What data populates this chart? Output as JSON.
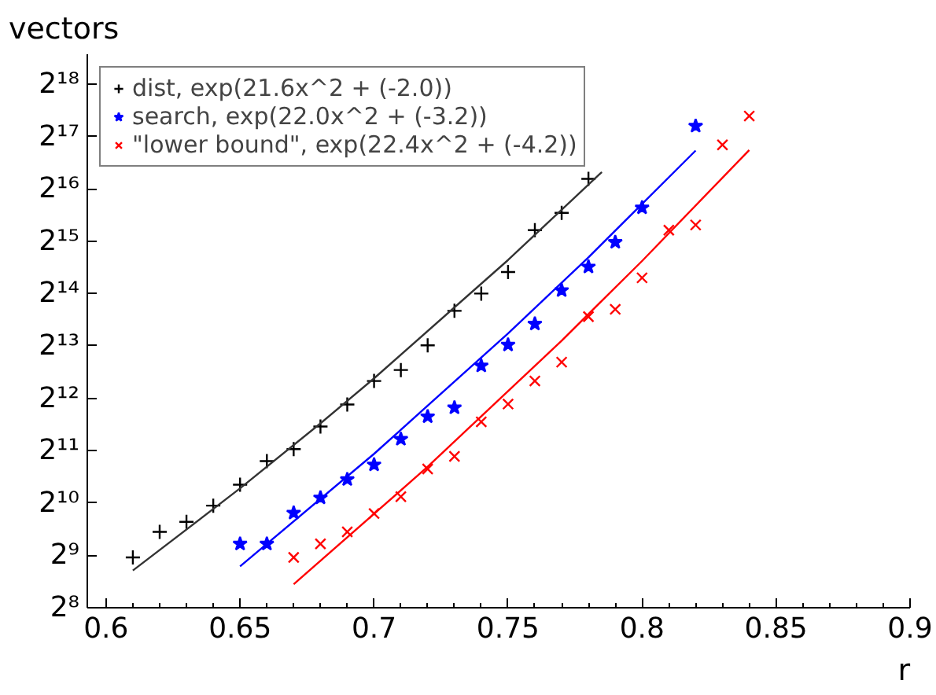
{
  "chart_data": {
    "type": "scatter",
    "xlabel": "r",
    "ylabel": "vectors",
    "log": "y",
    "grid": false,
    "legend": "top left",
    "xlim": [
      0.593,
      0.9
    ],
    "ylim": [
      256,
      389000
    ],
    "xticks": [
      0.6,
      0.65,
      0.7,
      0.75,
      0.8,
      0.85,
      0.9
    ],
    "yticks": [
      {
        "value": 256,
        "label": "2⁸"
      },
      {
        "value": 512,
        "label": "2⁹"
      },
      {
        "value": 1024,
        "label": "2¹⁰"
      },
      {
        "value": 2048,
        "label": "2¹¹"
      },
      {
        "value": 4096,
        "label": "2¹²"
      },
      {
        "value": 8192,
        "label": "2¹³"
      },
      {
        "value": 16384,
        "label": "2¹⁴"
      },
      {
        "value": 32768,
        "label": "2¹⁵"
      },
      {
        "value": 65536,
        "label": "2¹⁶"
      },
      {
        "value": 131072,
        "label": "2¹⁷"
      },
      {
        "value": 262144,
        "label": "2¹⁸"
      }
    ],
    "series": [
      {
        "name": "dist, exp(21.6x^2 + (-2.0))",
        "color": "#000000",
        "marker": "cross",
        "x": [
          0.61,
          0.62,
          0.63,
          0.64,
          0.65,
          0.66,
          0.67,
          0.68,
          0.69,
          0.7,
          0.71,
          0.72,
          0.73,
          0.74,
          0.75,
          0.76,
          0.77,
          0.78
        ],
        "values": [
          498,
          699,
          798,
          989,
          1305,
          1783,
          2091,
          2817,
          3769,
          5148,
          5954,
          8250,
          13030,
          16380,
          21770,
          37890,
          47630,
          74800
        ]
      },
      {
        "name": "search, exp(22.0x^2 + (-3.2))",
        "color": "#0000ff",
        "marker": "star",
        "x": [
          0.65,
          0.66,
          0.67,
          0.68,
          0.69,
          0.7,
          0.71,
          0.72,
          0.73,
          0.74,
          0.75,
          0.76,
          0.77,
          0.78,
          0.79,
          0.8,
          0.82
        ],
        "values": [
          596,
          596,
          898,
          1097,
          1399,
          1699,
          2385,
          3213,
          3615,
          6293,
          8307,
          10960,
          17070,
          23330,
          32310,
          51020,
          150500
        ]
      },
      {
        "name": "\"lower bound\", exp(22.4x^2 + (-4.2))",
        "color": "#ff0000",
        "marker": "x",
        "x": [
          0.67,
          0.68,
          0.69,
          0.7,
          0.71,
          0.72,
          0.73,
          0.74,
          0.75,
          0.76,
          0.77,
          0.78,
          0.79,
          0.8,
          0.81,
          0.82,
          0.83,
          0.84
        ],
        "values": [
          498,
          596,
          699,
          891,
          1113,
          1607,
          1897,
          2997,
          3795,
          5148,
          6607,
          12070,
          13300,
          20170,
          37890,
          40610,
          117200,
          171700
        ]
      },
      {
        "type": "line",
        "color": "#333333",
        "x": [
          0.61,
          0.65,
          0.68,
          0.7,
          0.75,
          0.785
        ],
        "values": [
          419,
          1243,
          2937,
          5330,
          25530,
          81800
        ]
      },
      {
        "type": "line",
        "color": "#0000ff",
        "x": [
          0.65,
          0.7,
          0.75,
          0.78,
          0.82
        ],
        "values": [
          443,
          1963,
          9670,
          26450,
          108700
        ]
      },
      {
        "type": "line",
        "color": "#ff0000",
        "x": [
          0.67,
          0.72,
          0.77,
          0.8,
          0.84
        ],
        "values": [
          349,
          1654,
          8780,
          25200,
          109500
        ]
      }
    ]
  }
}
